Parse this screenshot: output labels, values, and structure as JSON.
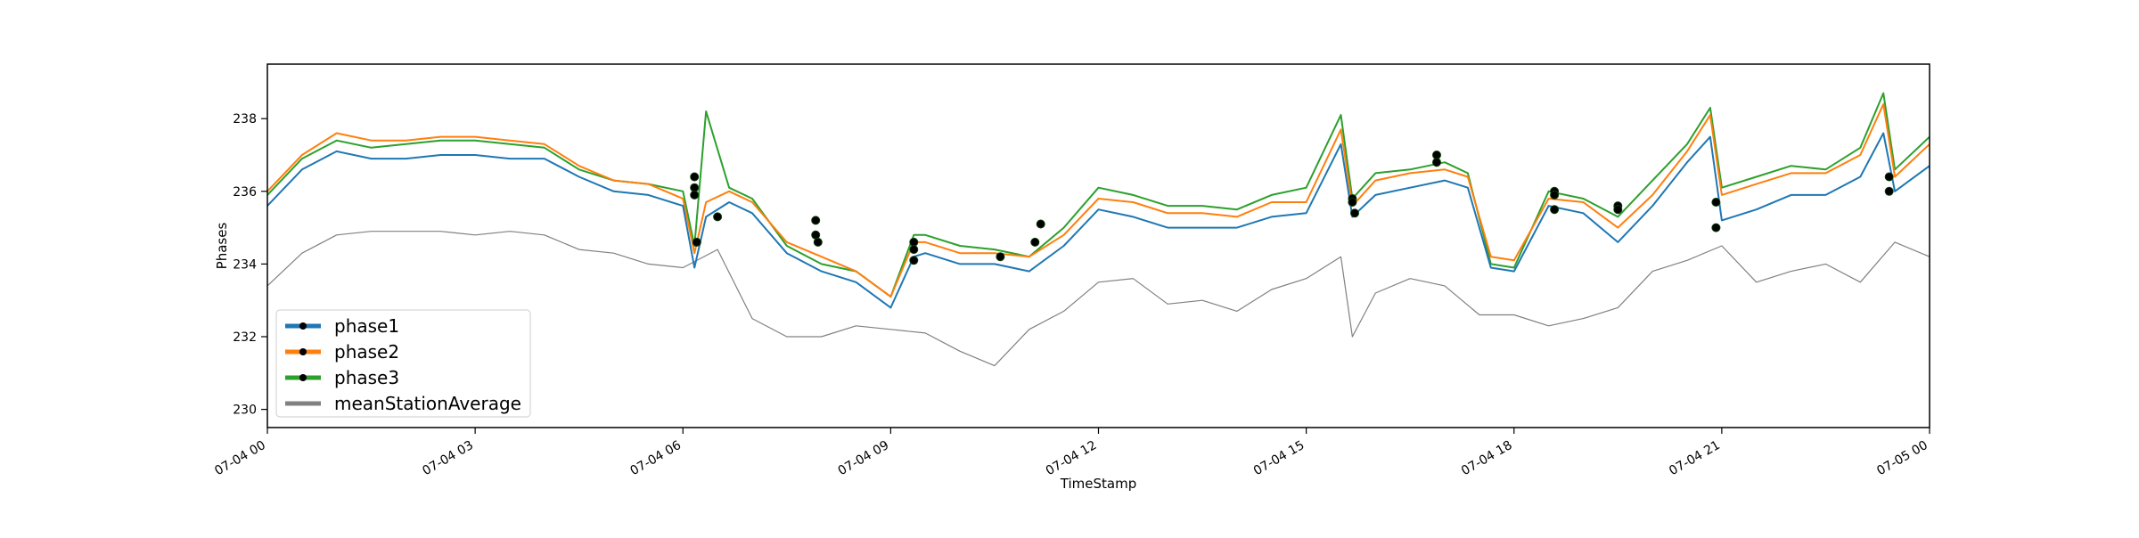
{
  "chart_data": {
    "type": "line",
    "xlabel": "TimeStamp",
    "ylabel": "Phases",
    "xlim": [
      "2019-07-04 00:00",
      "2019-07-05 00:00"
    ],
    "ylim": [
      229.5,
      239.5
    ],
    "xticks": [
      {
        "value": "2019-07-04 00:00",
        "label": "07-04 00"
      },
      {
        "value": "2019-07-04 03:00",
        "label": "07-04 03"
      },
      {
        "value": "2019-07-04 06:00",
        "label": "07-04 06"
      },
      {
        "value": "2019-07-04 09:00",
        "label": "07-04 09"
      },
      {
        "value": "2019-07-04 12:00",
        "label": "07-04 12"
      },
      {
        "value": "2019-07-04 15:00",
        "label": "07-04 15"
      },
      {
        "value": "2019-07-04 18:00",
        "label": "07-04 18"
      },
      {
        "value": "2019-07-04 21:00",
        "label": "07-04 21"
      },
      {
        "value": "2019-07-05 00:00",
        "label": "07-05 00"
      }
    ],
    "yticks": [
      230,
      232,
      234,
      236,
      238
    ],
    "grid": false,
    "legend_position": "lower-left",
    "series": [
      {
        "name": "phase1",
        "color": "#1f77b4",
        "x": [
          "2019-07-04 00:00",
          "2019-07-04 00:30",
          "2019-07-04 01:00",
          "2019-07-04 01:30",
          "2019-07-04 02:00",
          "2019-07-04 02:30",
          "2019-07-04 03:00",
          "2019-07-04 03:30",
          "2019-07-04 04:00",
          "2019-07-04 04:30",
          "2019-07-04 05:00",
          "2019-07-04 05:30",
          "2019-07-04 06:00",
          "2019-07-04 06:10",
          "2019-07-04 06:20",
          "2019-07-04 06:40",
          "2019-07-04 07:00",
          "2019-07-04 07:30",
          "2019-07-04 08:00",
          "2019-07-04 08:30",
          "2019-07-04 09:00",
          "2019-07-04 09:20",
          "2019-07-04 09:30",
          "2019-07-04 10:00",
          "2019-07-04 10:30",
          "2019-07-04 11:00",
          "2019-07-04 11:30",
          "2019-07-04 12:00",
          "2019-07-04 12:30",
          "2019-07-04 13:00",
          "2019-07-04 13:30",
          "2019-07-04 14:00",
          "2019-07-04 14:30",
          "2019-07-04 15:00",
          "2019-07-04 15:30",
          "2019-07-04 15:40",
          "2019-07-04 16:00",
          "2019-07-04 16:30",
          "2019-07-04 17:00",
          "2019-07-04 17:20",
          "2019-07-04 17:40",
          "2019-07-04 18:00",
          "2019-07-04 18:30",
          "2019-07-04 19:00",
          "2019-07-04 19:30",
          "2019-07-04 20:00",
          "2019-07-04 20:30",
          "2019-07-04 20:50",
          "2019-07-04 21:00",
          "2019-07-04 21:30",
          "2019-07-04 22:00",
          "2019-07-04 22:30",
          "2019-07-04 23:00",
          "2019-07-04 23:20",
          "2019-07-04 23:30",
          "2019-07-05 00:00"
        ],
        "y": [
          235.6,
          236.6,
          237.1,
          236.9,
          236.9,
          237.0,
          237.0,
          236.9,
          236.9,
          236.4,
          236.0,
          235.9,
          235.6,
          233.9,
          235.3,
          235.7,
          235.4,
          234.3,
          233.8,
          233.5,
          232.8,
          234.2,
          234.3,
          234.0,
          234.0,
          233.8,
          234.5,
          235.5,
          235.3,
          235.0,
          235.0,
          235.0,
          235.3,
          235.4,
          237.3,
          235.3,
          235.9,
          236.1,
          236.3,
          236.1,
          233.9,
          233.8,
          235.6,
          235.4,
          234.6,
          235.6,
          236.8,
          237.5,
          235.2,
          235.5,
          235.9,
          235.9,
          236.4,
          237.6,
          236.0,
          236.7
        ]
      },
      {
        "name": "phase2",
        "color": "#ff7f0e",
        "x": [
          "2019-07-04 00:00",
          "2019-07-04 00:30",
          "2019-07-04 01:00",
          "2019-07-04 01:30",
          "2019-07-04 02:00",
          "2019-07-04 02:30",
          "2019-07-04 03:00",
          "2019-07-04 03:30",
          "2019-07-04 04:00",
          "2019-07-04 04:30",
          "2019-07-04 05:00",
          "2019-07-04 05:30",
          "2019-07-04 06:00",
          "2019-07-04 06:10",
          "2019-07-04 06:20",
          "2019-07-04 06:40",
          "2019-07-04 07:00",
          "2019-07-04 07:30",
          "2019-07-04 08:00",
          "2019-07-04 08:30",
          "2019-07-04 09:00",
          "2019-07-04 09:20",
          "2019-07-04 09:30",
          "2019-07-04 10:00",
          "2019-07-04 10:30",
          "2019-07-04 11:00",
          "2019-07-04 11:30",
          "2019-07-04 12:00",
          "2019-07-04 12:30",
          "2019-07-04 13:00",
          "2019-07-04 13:30",
          "2019-07-04 14:00",
          "2019-07-04 14:30",
          "2019-07-04 15:00",
          "2019-07-04 15:30",
          "2019-07-04 15:40",
          "2019-07-04 16:00",
          "2019-07-04 16:30",
          "2019-07-04 17:00",
          "2019-07-04 17:20",
          "2019-07-04 17:40",
          "2019-07-04 18:00",
          "2019-07-04 18:30",
          "2019-07-04 19:00",
          "2019-07-04 19:30",
          "2019-07-04 20:00",
          "2019-07-04 20:30",
          "2019-07-04 20:50",
          "2019-07-04 21:00",
          "2019-07-04 21:30",
          "2019-07-04 22:00",
          "2019-07-04 22:30",
          "2019-07-04 23:00",
          "2019-07-04 23:20",
          "2019-07-04 23:30",
          "2019-07-05 00:00"
        ],
        "y": [
          236.0,
          237.0,
          237.6,
          237.4,
          237.4,
          237.5,
          237.5,
          237.4,
          237.3,
          236.7,
          236.3,
          236.2,
          235.8,
          234.3,
          235.7,
          236.0,
          235.7,
          234.6,
          234.2,
          233.8,
          233.1,
          234.6,
          234.6,
          234.3,
          234.3,
          234.2,
          234.8,
          235.8,
          235.7,
          235.4,
          235.4,
          235.3,
          235.7,
          235.7,
          237.7,
          235.6,
          236.3,
          236.5,
          236.6,
          236.4,
          234.2,
          234.1,
          235.8,
          235.7,
          235.0,
          235.9,
          237.1,
          238.1,
          235.9,
          236.2,
          236.5,
          236.5,
          237.0,
          238.4,
          236.4,
          237.3
        ]
      },
      {
        "name": "phase3",
        "color": "#2ca02c",
        "x": [
          "2019-07-04 00:00",
          "2019-07-04 00:30",
          "2019-07-04 01:00",
          "2019-07-04 01:30",
          "2019-07-04 02:00",
          "2019-07-04 02:30",
          "2019-07-04 03:00",
          "2019-07-04 03:30",
          "2019-07-04 04:00",
          "2019-07-04 04:30",
          "2019-07-04 05:00",
          "2019-07-04 05:30",
          "2019-07-04 06:00",
          "2019-07-04 06:10",
          "2019-07-04 06:20",
          "2019-07-04 06:40",
          "2019-07-04 07:00",
          "2019-07-04 07:30",
          "2019-07-04 08:00",
          "2019-07-04 08:30",
          "2019-07-04 09:00",
          "2019-07-04 09:20",
          "2019-07-04 09:30",
          "2019-07-04 10:00",
          "2019-07-04 10:30",
          "2019-07-04 11:00",
          "2019-07-04 11:30",
          "2019-07-04 12:00",
          "2019-07-04 12:30",
          "2019-07-04 13:00",
          "2019-07-04 13:30",
          "2019-07-04 14:00",
          "2019-07-04 14:30",
          "2019-07-04 15:00",
          "2019-07-04 15:30",
          "2019-07-04 15:40",
          "2019-07-04 16:00",
          "2019-07-04 16:30",
          "2019-07-04 17:00",
          "2019-07-04 17:20",
          "2019-07-04 17:40",
          "2019-07-04 18:00",
          "2019-07-04 18:30",
          "2019-07-04 19:00",
          "2019-07-04 19:30",
          "2019-07-04 20:00",
          "2019-07-04 20:30",
          "2019-07-04 20:50",
          "2019-07-04 21:00",
          "2019-07-04 21:30",
          "2019-07-04 22:00",
          "2019-07-04 22:30",
          "2019-07-04 23:00",
          "2019-07-04 23:20",
          "2019-07-04 23:30",
          "2019-07-05 00:00"
        ],
        "y": [
          235.9,
          236.9,
          237.4,
          237.2,
          237.3,
          237.4,
          237.4,
          237.3,
          237.2,
          236.6,
          236.3,
          236.2,
          236.0,
          234.5,
          238.2,
          236.1,
          235.8,
          234.5,
          234.0,
          233.8,
          233.1,
          234.8,
          234.8,
          234.5,
          234.4,
          234.2,
          235.0,
          236.1,
          235.9,
          235.6,
          235.6,
          235.5,
          235.9,
          236.1,
          238.1,
          235.8,
          236.5,
          236.6,
          236.8,
          236.5,
          234.0,
          233.9,
          236.0,
          235.8,
          235.3,
          236.3,
          237.3,
          238.3,
          236.1,
          236.4,
          236.7,
          236.6,
          237.2,
          238.7,
          236.6,
          237.5
        ]
      },
      {
        "name": "meanStationAverage",
        "color": "#808080",
        "x": [
          "2019-07-04 00:00",
          "2019-07-04 00:30",
          "2019-07-04 01:00",
          "2019-07-04 01:30",
          "2019-07-04 02:00",
          "2019-07-04 02:30",
          "2019-07-04 03:00",
          "2019-07-04 03:30",
          "2019-07-04 04:00",
          "2019-07-04 04:30",
          "2019-07-04 05:00",
          "2019-07-04 05:30",
          "2019-07-04 06:00",
          "2019-07-04 06:30",
          "2019-07-04 07:00",
          "2019-07-04 07:30",
          "2019-07-04 08:00",
          "2019-07-04 08:30",
          "2019-07-04 09:00",
          "2019-07-04 09:30",
          "2019-07-04 10:00",
          "2019-07-04 10:30",
          "2019-07-04 11:00",
          "2019-07-04 11:30",
          "2019-07-04 12:00",
          "2019-07-04 12:30",
          "2019-07-04 13:00",
          "2019-07-04 13:30",
          "2019-07-04 14:00",
          "2019-07-04 14:30",
          "2019-07-04 15:00",
          "2019-07-04 15:30",
          "2019-07-04 15:40",
          "2019-07-04 16:00",
          "2019-07-04 16:30",
          "2019-07-04 17:00",
          "2019-07-04 17:30",
          "2019-07-04 18:00",
          "2019-07-04 18:30",
          "2019-07-04 19:00",
          "2019-07-04 19:30",
          "2019-07-04 20:00",
          "2019-07-04 20:30",
          "2019-07-04 21:00",
          "2019-07-04 21:30",
          "2019-07-04 22:00",
          "2019-07-04 22:30",
          "2019-07-04 23:00",
          "2019-07-04 23:30",
          "2019-07-05 00:00"
        ],
        "y": [
          233.4,
          234.3,
          234.8,
          234.9,
          234.9,
          234.9,
          234.8,
          234.9,
          234.8,
          234.4,
          234.3,
          234.0,
          233.9,
          234.4,
          232.5,
          232.0,
          232.0,
          232.3,
          232.2,
          232.1,
          231.6,
          231.2,
          232.2,
          232.7,
          233.5,
          233.6,
          232.9,
          233.0,
          232.7,
          233.3,
          233.6,
          234.2,
          232.0,
          233.2,
          233.6,
          233.4,
          232.6,
          232.6,
          232.3,
          232.5,
          232.8,
          233.8,
          234.1,
          234.5,
          233.5,
          233.8,
          234.0,
          233.5,
          234.6,
          234.2
        ]
      }
    ],
    "markers": [
      {
        "x": "2019-07-04 06:10",
        "y": 236.4
      },
      {
        "x": "2019-07-04 06:10",
        "y": 236.1
      },
      {
        "x": "2019-07-04 06:10",
        "y": 235.9
      },
      {
        "x": "2019-07-04 06:12",
        "y": 234.6
      },
      {
        "x": "2019-07-04 06:30",
        "y": 235.3
      },
      {
        "x": "2019-07-04 07:55",
        "y": 235.2
      },
      {
        "x": "2019-07-04 07:55",
        "y": 234.8
      },
      {
        "x": "2019-07-04 07:57",
        "y": 234.6
      },
      {
        "x": "2019-07-04 09:20",
        "y": 234.6
      },
      {
        "x": "2019-07-04 09:20",
        "y": 234.4
      },
      {
        "x": "2019-07-04 09:20",
        "y": 234.1
      },
      {
        "x": "2019-07-04 10:35",
        "y": 234.2
      },
      {
        "x": "2019-07-04 11:05",
        "y": 234.6
      },
      {
        "x": "2019-07-04 11:10",
        "y": 235.1
      },
      {
        "x": "2019-07-04 15:40",
        "y": 235.8
      },
      {
        "x": "2019-07-04 15:40",
        "y": 235.7
      },
      {
        "x": "2019-07-04 15:42",
        "y": 235.4
      },
      {
        "x": "2019-07-04 16:53",
        "y": 237.0
      },
      {
        "x": "2019-07-04 16:53",
        "y": 236.8
      },
      {
        "x": "2019-07-04 18:35",
        "y": 236.0
      },
      {
        "x": "2019-07-04 18:35",
        "y": 235.9
      },
      {
        "x": "2019-07-04 18:35",
        "y": 235.5
      },
      {
        "x": "2019-07-04 19:30",
        "y": 235.6
      },
      {
        "x": "2019-07-04 19:30",
        "y": 235.5
      },
      {
        "x": "2019-07-04 20:55",
        "y": 235.7
      },
      {
        "x": "2019-07-04 20:55",
        "y": 235.0
      },
      {
        "x": "2019-07-04 23:25",
        "y": 236.4
      },
      {
        "x": "2019-07-04 23:25",
        "y": 236.0
      }
    ]
  }
}
